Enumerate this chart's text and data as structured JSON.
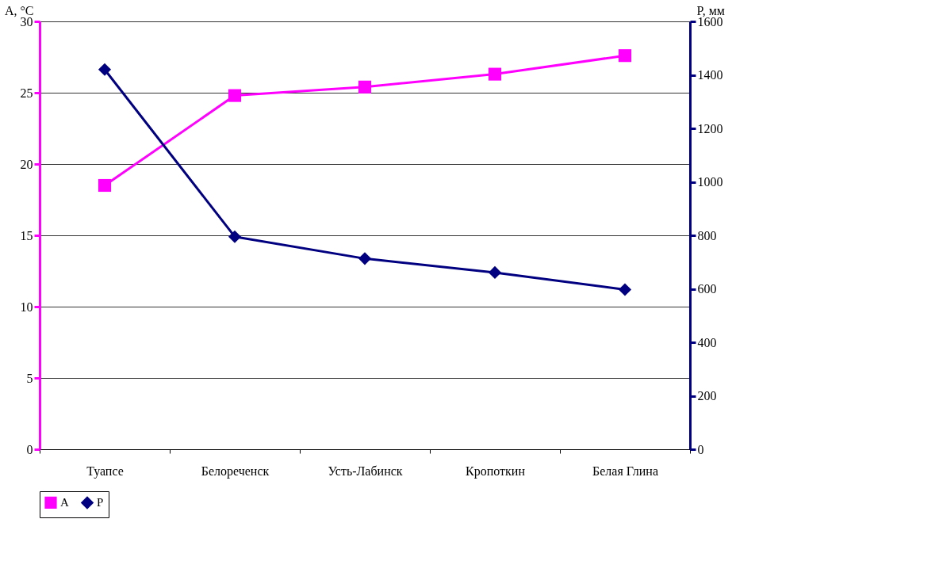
{
  "chart_data": {
    "type": "line",
    "categories": [
      "Туапсе",
      "Белореченск",
      "Усть-Лабинск",
      "Кропоткин",
      "Белая Глина"
    ],
    "ylabel": "A, °C",
    "y2label": "P, мм",
    "ylim": [
      0,
      30
    ],
    "yticks": [
      0,
      5,
      10,
      15,
      20,
      25,
      30
    ],
    "y2lim": [
      0,
      1600
    ],
    "y2ticks": [
      0,
      200,
      400,
      600,
      800,
      1000,
      1200,
      1400,
      1600
    ],
    "grid": "y",
    "legend": "bottom",
    "line_style": "solid",
    "series": [
      {
        "name": "A",
        "color": "#ff00ff",
        "marker": "square",
        "values": [
          18.5,
          24.8,
          25.4,
          26.3,
          27.6
        ]
      },
      {
        "name": "P",
        "color": "#000080",
        "marker": "diamond",
        "axis": "y2",
        "values": [
          1420,
          795,
          713,
          661,
          597
        ]
      }
    ]
  }
}
